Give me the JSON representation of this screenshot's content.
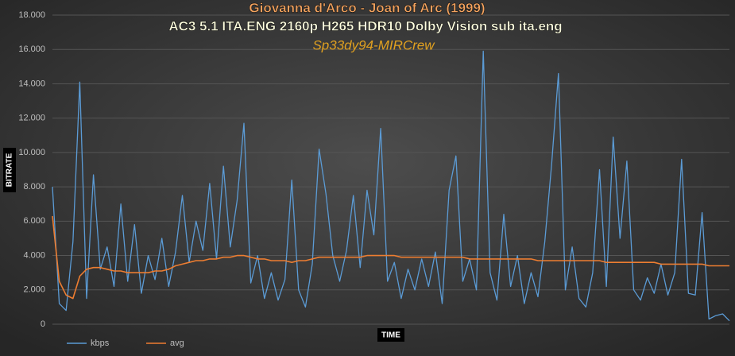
{
  "chart_data": {
    "type": "line",
    "title": "Giovanna d'Arco - Joan of Arc (1999)",
    "subtitle": "AC3 5.1 ITA.ENG 2160p H265 HDR10 Dolby Vision sub ita.eng",
    "annotation": "Sp33dy94-MIRCrew",
    "x_label": "TIME",
    "y_label": "BITRATE",
    "ylim": [
      0,
      18000
    ],
    "yticks": [
      0,
      {
        "value": 2000,
        "label": "2.000"
      },
      {
        "value": 4000,
        "label": "4.000"
      },
      {
        "value": 6000,
        "label": "6.000"
      },
      {
        "value": 8000,
        "label": "8.000"
      },
      {
        "value": 10000,
        "label": "10.000"
      },
      {
        "value": 12000,
        "label": "12.000"
      },
      {
        "value": 14000,
        "label": "14.000"
      },
      {
        "value": 16000,
        "label": "16.000"
      },
      {
        "value": 18000,
        "label": "18.000"
      }
    ],
    "grid": true,
    "legend": "bottom-left",
    "series": [
      {
        "name": "kbps",
        "color": "#5b9bd5",
        "values": [
          8000,
          1200,
          800,
          4800,
          14100,
          1500,
          8700,
          3200,
          4500,
          2200,
          7000,
          2500,
          5800,
          1800,
          4000,
          2600,
          5000,
          2200,
          4200,
          7500,
          3600,
          6000,
          4300,
          8200,
          3800,
          9200,
          4500,
          7200,
          11700,
          2400,
          4000,
          1500,
          3000,
          1400,
          2600,
          8400,
          2000,
          1000,
          3500,
          10200,
          7600,
          4000,
          2500,
          4300,
          7500,
          3300,
          7800,
          5200,
          11400,
          2500,
          3600,
          1500,
          3200,
          2000,
          3800,
          2200,
          4200,
          1200,
          7800,
          9800,
          2500,
          3800,
          2000,
          15900,
          3000,
          1400,
          6400,
          2200,
          4000,
          1200,
          3000,
          1600,
          4800,
          9300,
          14600,
          2000,
          4500,
          1500,
          1000,
          3000,
          9000,
          2200,
          10900,
          5000,
          9500,
          2000,
          1400,
          2700,
          1800,
          3500,
          1700,
          3000,
          9600,
          1800,
          1700,
          6500,
          300,
          500,
          600,
          200
        ]
      },
      {
        "name": "avg",
        "color": "#ed7d31",
        "values": [
          6300,
          2500,
          1700,
          1500,
          2800,
          3200,
          3300,
          3300,
          3200,
          3100,
          3100,
          3000,
          3000,
          3000,
          3000,
          3100,
          3100,
          3200,
          3400,
          3500,
          3600,
          3700,
          3700,
          3800,
          3800,
          3900,
          3900,
          4000,
          4000,
          3900,
          3800,
          3800,
          3700,
          3700,
          3700,
          3600,
          3700,
          3700,
          3800,
          3900,
          3900,
          3900,
          3900,
          3900,
          3900,
          3900,
          4000,
          4000,
          4000,
          4000,
          4000,
          3900,
          3900,
          3900,
          3900,
          3900,
          3900,
          3900,
          3900,
          3900,
          3900,
          3800,
          3800,
          3800,
          3800,
          3800,
          3800,
          3800,
          3800,
          3800,
          3800,
          3700,
          3700,
          3700,
          3700,
          3700,
          3700,
          3700,
          3700,
          3700,
          3700,
          3600,
          3600,
          3600,
          3600,
          3600,
          3600,
          3600,
          3600,
          3500,
          3500,
          3500,
          3500,
          3500,
          3500,
          3500,
          3400,
          3400,
          3400,
          3400
        ]
      }
    ]
  }
}
